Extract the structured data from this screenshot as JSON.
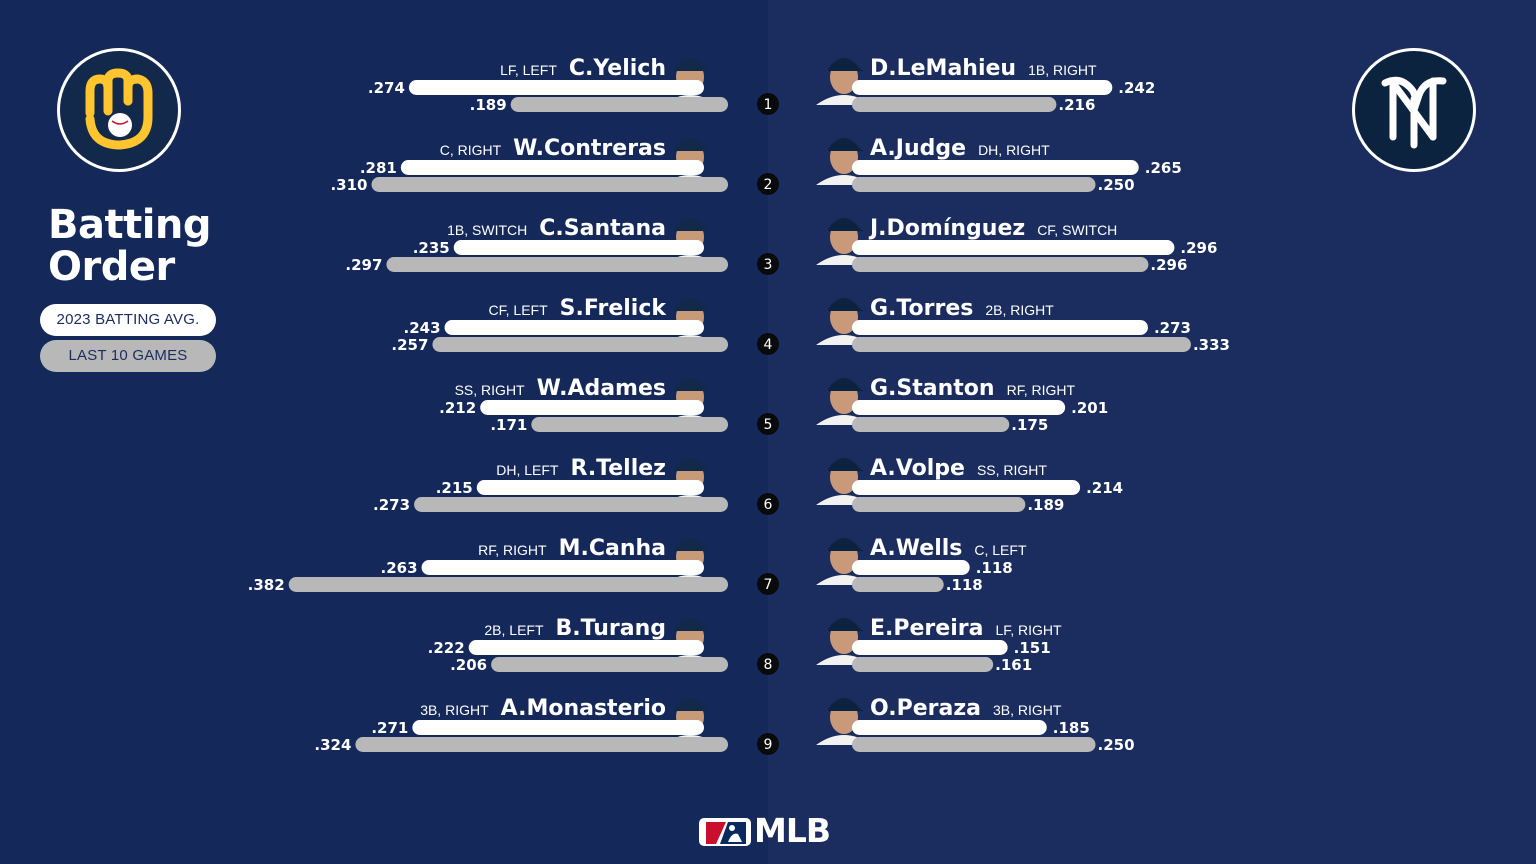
{
  "title_line1": "Batting",
  "title_line2": "Order",
  "brand": "MLB",
  "colors": {
    "background": "#14285a",
    "season_bar": "#ffffff",
    "last10_bar": "#b8b8b8",
    "brewers_navy": "#13294b",
    "brewers_gold": "#ffc52f",
    "yankees_navy": "#0c2340"
  },
  "icons": {
    "left_logo": "brewers-logo-icon",
    "right_logo": "yankees-logo-icon",
    "footer_logo": "mlb-logo-icon"
  },
  "chart_data": {
    "type": "bar",
    "title": "",
    "xlabel": "",
    "ylabel": "",
    "xlim": [
      0,
      0.4
    ],
    "grid": false,
    "legend_placement": "left",
    "legend": [
      "2023 BATTING AVG.",
      "LAST 10 GAMES"
    ],
    "categories": [
      "1",
      "2",
      "3",
      "4",
      "5",
      "6",
      "7",
      "8",
      "9"
    ],
    "teams": [
      {
        "side": "left",
        "players": [
          {
            "order": "1",
            "name": "C.Yelich",
            "pos": "LF, LEFT",
            "season": ".274",
            "last10": ".189"
          },
          {
            "order": "2",
            "name": "W.Contreras",
            "pos": "C, RIGHT",
            "season": ".281",
            "last10": ".310"
          },
          {
            "order": "3",
            "name": "C.Santana",
            "pos": "1B, SWITCH",
            "season": ".235",
            "last10": ".297"
          },
          {
            "order": "4",
            "name": "S.Frelick",
            "pos": "CF, LEFT",
            "season": ".243",
            "last10": ".257"
          },
          {
            "order": "5",
            "name": "W.Adames",
            "pos": "SS, RIGHT",
            "season": ".212",
            "last10": ".171"
          },
          {
            "order": "6",
            "name": "R.Tellez",
            "pos": "DH, LEFT",
            "season": ".215",
            "last10": ".273"
          },
          {
            "order": "7",
            "name": "M.Canha",
            "pos": "RF, RIGHT",
            "season": ".263",
            "last10": ".382"
          },
          {
            "order": "8",
            "name": "B.Turang",
            "pos": "2B, LEFT",
            "season": ".222",
            "last10": ".206"
          },
          {
            "order": "9",
            "name": "A.Monasterio",
            "pos": "3B, RIGHT",
            "season": ".271",
            "last10": ".324"
          }
        ]
      },
      {
        "side": "right",
        "players": [
          {
            "order": "1",
            "name": "D.LeMahieu",
            "pos": "1B, RIGHT",
            "season": ".242",
            "last10": ".216"
          },
          {
            "order": "2",
            "name": "A.Judge",
            "pos": "DH, RIGHT",
            "season": ".265",
            "last10": ".250"
          },
          {
            "order": "3",
            "name": "J.Domínguez",
            "pos": "CF, SWITCH",
            "season": ".296",
            "last10": ".296"
          },
          {
            "order": "4",
            "name": "G.Torres",
            "pos": "2B, RIGHT",
            "season": ".273",
            "last10": ".333"
          },
          {
            "order": "5",
            "name": "G.Stanton",
            "pos": "RF, RIGHT",
            "season": ".201",
            "last10": ".175"
          },
          {
            "order": "6",
            "name": "A.Volpe",
            "pos": "SS, RIGHT",
            "season": ".214",
            "last10": ".189"
          },
          {
            "order": "7",
            "name": "A.Wells",
            "pos": "C, LEFT",
            "season": ".118",
            "last10": ".118"
          },
          {
            "order": "8",
            "name": "E.Pereira",
            "pos": "LF, RIGHT",
            "season": ".151",
            "last10": ".161"
          },
          {
            "order": "9",
            "name": "O.Peraza",
            "pos": "3B, RIGHT",
            "season": ".185",
            "last10": ".250"
          }
        ]
      }
    ]
  }
}
